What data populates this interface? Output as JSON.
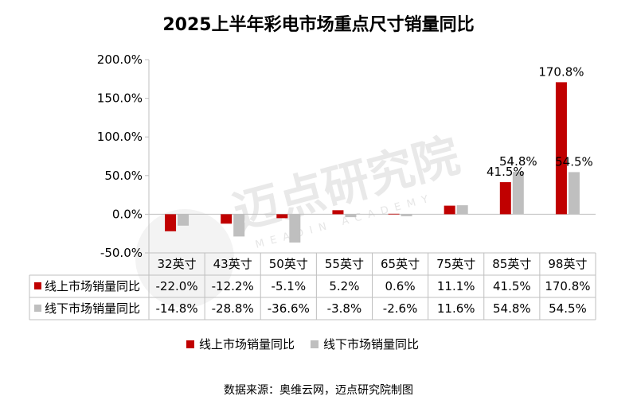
{
  "chart_data": {
    "type": "bar",
    "title": "2025上半年彩电市场重点尺寸销量同比",
    "categories": [
      "32英寸",
      "43英寸",
      "50英寸",
      "55英寸",
      "65英寸",
      "75英寸",
      "85英寸",
      "98英寸"
    ],
    "series": [
      {
        "name": "线上市场销量同比",
        "color": "#C00000",
        "values": [
          -22.0,
          -12.2,
          -5.1,
          5.2,
          0.6,
          11.1,
          41.5,
          170.8
        ],
        "labels": [
          "-22.0%",
          "-12.2%",
          "-5.1%",
          "5.2%",
          "0.6%",
          "11.1%",
          "41.5%",
          "170.8%"
        ]
      },
      {
        "name": "线下市场销量同比",
        "color": "#BFBFBF",
        "values": [
          -14.8,
          -28.8,
          -36.6,
          -3.8,
          -2.6,
          11.6,
          54.8,
          54.5
        ],
        "labels": [
          "-14.8%",
          "-28.8%",
          "-36.6%",
          "-3.8%",
          "-2.6%",
          "11.6%",
          "54.8%",
          "54.5%"
        ]
      }
    ],
    "data_labels": [
      {
        "series": 0,
        "index": 6,
        "text": "41.5%"
      },
      {
        "series": 1,
        "index": 6,
        "text": "54.8%"
      },
      {
        "series": 0,
        "index": 7,
        "text": "170.8%"
      },
      {
        "series": 1,
        "index": 7,
        "text": "54.5%"
      }
    ],
    "ylim": [
      -50,
      200
    ],
    "yticks": [
      -50,
      0,
      50,
      100,
      150,
      200
    ],
    "ytick_labels": [
      "-50.0%",
      "0.0%",
      "50.0%",
      "100.0%",
      "150.0%",
      "200.0%"
    ],
    "grid": false,
    "legend_position": "bottom",
    "data_table": true,
    "watermark": "迈点研究院 MEADIN ACADEMY",
    "source": "数据来源：奥维云网，迈点研究院制图"
  }
}
